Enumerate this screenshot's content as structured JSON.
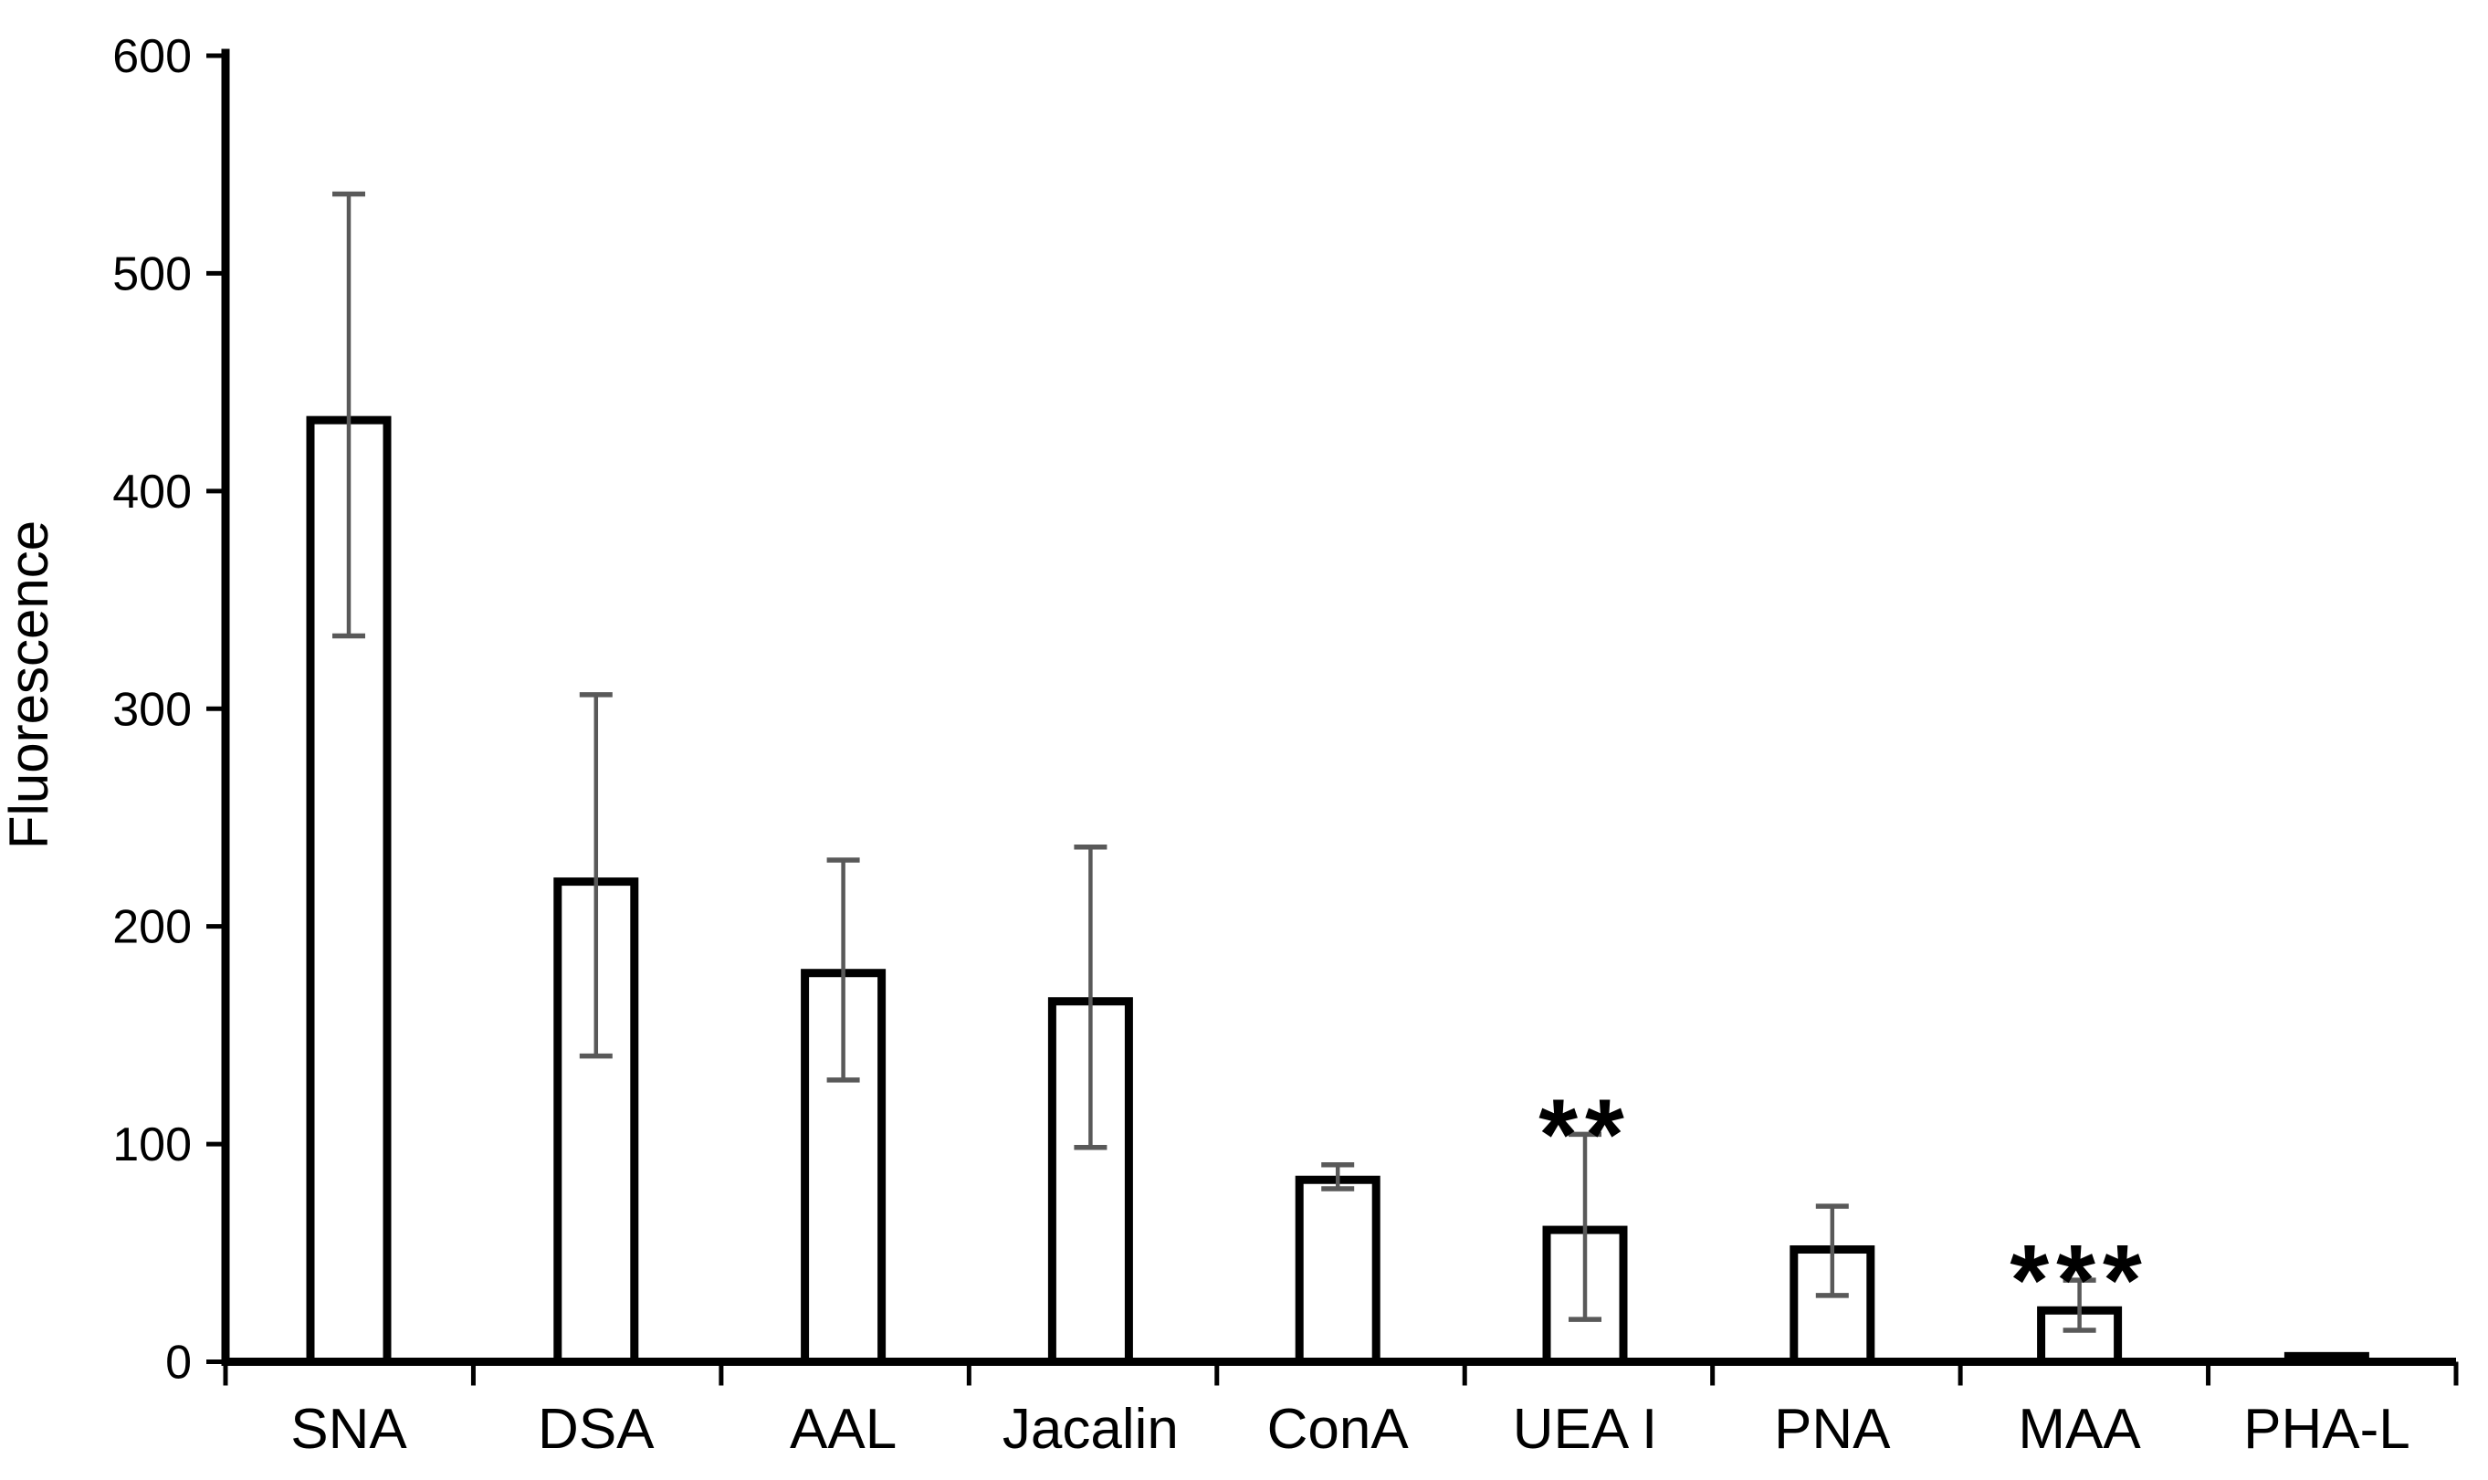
{
  "chart_data": {
    "type": "bar",
    "title": "",
    "xlabel": "",
    "ylabel": "Fluorescence",
    "ylim": [
      0,
      600
    ],
    "yticks": [
      0,
      100,
      200,
      300,
      400,
      500,
      600
    ],
    "grid": false,
    "legend": null,
    "categories": [
      "SNA",
      "DSA",
      "AAL",
      "Jacalin",
      "ConA",
      "UEA I",
      "PNA",
      "MAA",
      "PHA-L"
    ],
    "values": [
      433,
      221,
      179,
      166,
      84,
      61,
      52,
      24,
      3
    ],
    "error_high": [
      535,
      305,
      229,
      235,
      89,
      103,
      70,
      36,
      null
    ],
    "error_low": [
      332,
      139,
      128,
      97,
      78,
      18,
      29,
      13,
      null
    ],
    "annotations": [
      "",
      "",
      "",
      "",
      "",
      "**",
      "",
      "***",
      ""
    ],
    "bar_fill": "#ffffff",
    "bar_border": "#000000",
    "error_color": "#595959",
    "axis_color": "#000000",
    "text_color": "#000000"
  }
}
